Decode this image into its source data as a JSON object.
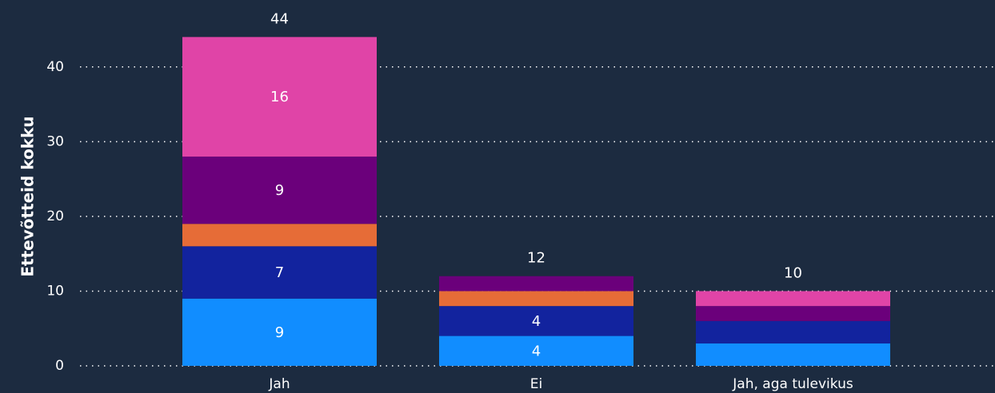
{
  "chart_data": {
    "type": "stacked_bar",
    "y_label": "Ettevõtteid kokku",
    "categories": [
      "Jah",
      "Ei",
      "Jah, aga tulevikus"
    ],
    "series": [
      {
        "color": "#118dff",
        "values": [
          9,
          4,
          3
        ],
        "value_labels": [
          "9",
          "4",
          null
        ]
      },
      {
        "color": "#12239e",
        "values": [
          7,
          4,
          3
        ],
        "value_labels": [
          "7",
          "4",
          null
        ]
      },
      {
        "color": "#e66c37",
        "values": [
          3,
          2,
          0
        ],
        "value_labels": [
          null,
          null,
          null
        ]
      },
      {
        "color": "#6b007b",
        "values": [
          9,
          2,
          2
        ],
        "value_labels": [
          "9",
          null,
          null
        ]
      },
      {
        "color": "#e044a7",
        "values": [
          16,
          0,
          2
        ],
        "value_labels": [
          "16",
          null,
          null
        ]
      }
    ],
    "totals": [
      44,
      12,
      10
    ],
    "ylim": [
      0,
      45
    ],
    "yticks": [
      0,
      10,
      20,
      30,
      40
    ],
    "grid": true
  }
}
